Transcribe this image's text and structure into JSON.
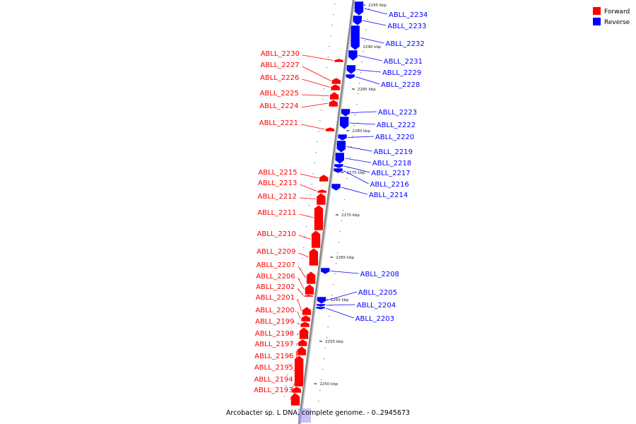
{
  "caption": "Arcobacter sp. L DNA, complete genome. - 0..2945673",
  "colors": {
    "forward": "#ff0000",
    "reverse": "#0000ff",
    "backbone": "#888888"
  },
  "legend": [
    {
      "label": "Forward",
      "color": "#ff0000"
    },
    {
      "label": "Reverse",
      "color": "#0000ff"
    }
  ],
  "ticks": [
    "2250 kbp",
    "2255 kbp",
    "2260 kbp",
    "2265 kbp",
    "2270 kbp",
    "2275 kbp",
    "2280 kbp",
    "2285 kbp",
    "2290 kbp",
    "2295 kbp"
  ],
  "forward_genes": [
    "ABLL_2230",
    "ABLL_2227",
    "ABLL_2226",
    "ABLL_2225",
    "ABLL_2224",
    "ABLL_2221",
    "ABLL_2215",
    "ABLL_2213",
    "ABLL_2212",
    "ABLL_2211",
    "ABLL_2210",
    "ABLL_2209",
    "ABLL_2207",
    "ABLL_2206",
    "ABLL_2202",
    "ABLL_2201",
    "ABLL_2200",
    "ABLL_2199",
    "ABLL_2198",
    "ABLL_2197",
    "ABLL_2196",
    "ABLL_2195",
    "ABLL_2194",
    "ABLL_2193"
  ],
  "reverse_genes": [
    "ABLL_2234",
    "ABLL_2233",
    "ABLL_2232",
    "ABLL_2231",
    "ABLL_2229",
    "ABLL_2228",
    "ABLL_2223",
    "ABLL_2222",
    "ABLL_2220",
    "ABLL_2219",
    "ABLL_2218",
    "ABLL_2217",
    "ABLL_2216",
    "ABLL_2214",
    "ABLL_2208",
    "ABLL_2205",
    "ABLL_2204",
    "ABLL_2203"
  ]
}
